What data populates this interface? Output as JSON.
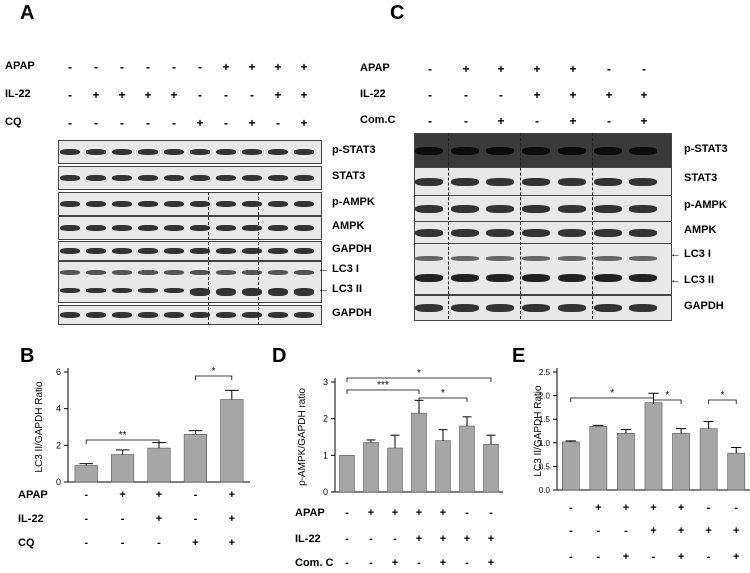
{
  "panelA": {
    "label": "A",
    "conditions": [
      {
        "name": "APAP",
        "signs": [
          "-",
          "-",
          "-",
          "-",
          "-",
          "-",
          "+",
          "+",
          "+",
          "+"
        ]
      },
      {
        "name": "IL-22",
        "signs": [
          "-",
          "+",
          "+",
          "+",
          "+",
          "-",
          "-",
          "-",
          "+",
          "+"
        ]
      },
      {
        "name": "CQ",
        "signs": [
          "-",
          "-",
          "-",
          "-",
          "-",
          "+",
          "-",
          "+",
          "-",
          "+"
        ]
      }
    ],
    "blots": [
      "p-STAT3",
      "STAT3",
      "p-AMPK",
      "AMPK",
      "GAPDH",
      "LC3 I",
      "LC3 II",
      "GAPDH"
    ]
  },
  "panelC": {
    "label": "C",
    "conditions": [
      {
        "name": "APAP",
        "signs": [
          "-",
          "+",
          "+",
          "+",
          "+",
          "-",
          "-"
        ]
      },
      {
        "name": "IL-22",
        "signs": [
          "-",
          "-",
          "-",
          "+",
          "+",
          "+",
          "+"
        ]
      },
      {
        "name": "Com.C",
        "signs": [
          "-",
          "-",
          "+",
          "-",
          "+",
          "-",
          "+"
        ]
      }
    ],
    "blots": [
      "p-STAT3",
      "STAT3",
      "p-AMPK",
      "AMPK",
      "LC3 I",
      "LC3 II",
      "GAPDH"
    ]
  },
  "panelB": {
    "label": "B",
    "chart_data": {
      "type": "bar",
      "ylabel": "LC3 II/GAPDH Ratio",
      "ylim": [
        0,
        6
      ],
      "yticks": [
        0,
        2,
        4,
        6
      ],
      "values": [
        0.9,
        1.5,
        1.85,
        2.6,
        4.5
      ],
      "errors": [
        0.1,
        0.25,
        0.3,
        0.2,
        0.5
      ],
      "significance": [
        {
          "from": 0,
          "to": 2,
          "label": "**"
        },
        {
          "from": 3,
          "to": 4,
          "label": "*"
        }
      ],
      "conditions": [
        {
          "name": "APAP",
          "signs": [
            "-",
            "+",
            "+",
            "-",
            "+"
          ]
        },
        {
          "name": "IL-22",
          "signs": [
            "-",
            "-",
            "+",
            "-",
            "+"
          ]
        },
        {
          "name": "CQ",
          "signs": [
            "-",
            "-",
            "-",
            "+",
            "+"
          ]
        }
      ]
    }
  },
  "panelD": {
    "label": "D",
    "chart_data": {
      "type": "bar",
      "ylabel": "p-AMPK/GAPDH ratio",
      "ylim": [
        0,
        3
      ],
      "yticks": [
        0,
        1,
        2,
        3
      ],
      "values": [
        1.0,
        1.35,
        1.2,
        2.15,
        1.4,
        1.8,
        1.3
      ],
      "errors": [
        0.0,
        0.07,
        0.35,
        0.35,
        0.3,
        0.25,
        0.25
      ],
      "significance": [
        {
          "from": 0,
          "to": 3,
          "label": "***"
        },
        {
          "from": 0,
          "to": 6,
          "label": "*"
        },
        {
          "from": 3,
          "to": 5,
          "label": "*"
        }
      ],
      "conditions": [
        {
          "name": "APAP",
          "signs": [
            "-",
            "+",
            "+",
            "+",
            "+",
            "-",
            "-"
          ]
        },
        {
          "name": "IL-22",
          "signs": [
            "-",
            "-",
            "-",
            "+",
            "+",
            "+",
            "+"
          ]
        },
        {
          "name": "Com. C",
          "signs": [
            "-",
            "-",
            "+",
            "-",
            "+",
            "-",
            "+"
          ]
        }
      ]
    }
  },
  "panelE": {
    "label": "E",
    "chart_data": {
      "type": "bar",
      "ylabel": "LC3 II/GAPDH Ratio",
      "ylim": [
        0,
        2.5
      ],
      "yticks": [
        0.0,
        0.5,
        1.0,
        1.5,
        2.0,
        2.5
      ],
      "values": [
        1.02,
        1.35,
        1.2,
        1.85,
        1.2,
        1.3,
        0.78
      ],
      "errors": [
        0.02,
        0.02,
        0.08,
        0.2,
        0.1,
        0.15,
        0.12
      ],
      "significance": [
        {
          "from": 0,
          "to": 3,
          "label": "*"
        },
        {
          "from": 3,
          "to": 4,
          "label": "*"
        },
        {
          "from": 5,
          "to": 6,
          "label": "*"
        }
      ],
      "signs": [
        [
          "-",
          "+",
          "+",
          "+",
          "+",
          "-",
          "-"
        ],
        [
          "-",
          "-",
          "-",
          "+",
          "+",
          "+",
          "+"
        ],
        [
          "-",
          "-",
          "+",
          "-",
          "+",
          "-",
          "+"
        ]
      ]
    }
  }
}
